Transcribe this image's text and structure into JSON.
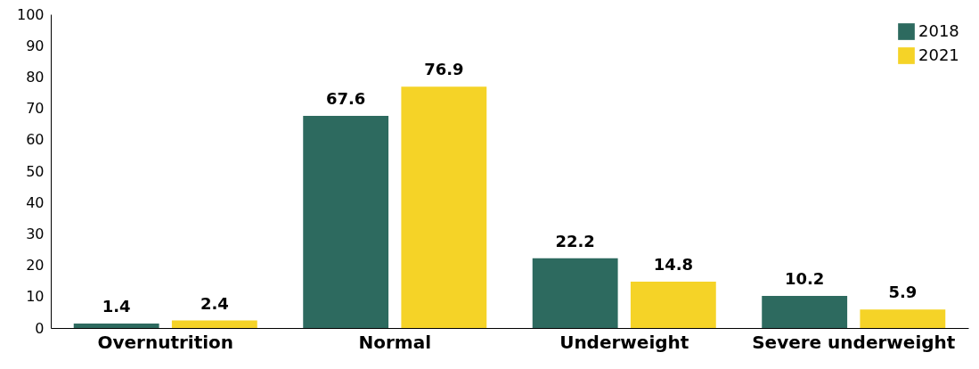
{
  "chart_data": {
    "type": "bar",
    "categories": [
      "Overnutrition",
      "Normal",
      "Underweight",
      "Severe underweight"
    ],
    "series": [
      {
        "name": "2018",
        "color": "#2d6a5f",
        "values": [
          1.4,
          67.6,
          22.2,
          10.2
        ]
      },
      {
        "name": "2021",
        "color": "#f5d327",
        "values": [
          2.4,
          76.9,
          14.8,
          5.9
        ]
      }
    ],
    "ylim": [
      0,
      100
    ],
    "yticks": [
      0,
      10,
      20,
      30,
      40,
      50,
      60,
      70,
      80,
      90,
      100
    ],
    "grid": false,
    "legend": "top right",
    "data_labels": true
  }
}
